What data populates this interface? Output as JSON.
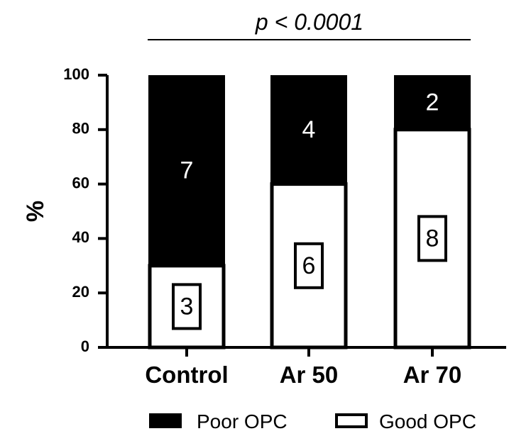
{
  "chart_data": {
    "type": "bar",
    "stacked": true,
    "categories": [
      "Control",
      "Ar 50",
      "Ar 70"
    ],
    "series": [
      {
        "name": "Good OPC",
        "values": [
          30,
          60,
          80
        ],
        "counts": [
          "3",
          "6",
          "8"
        ],
        "color": "#ffffff"
      },
      {
        "name": "Poor OPC",
        "values": [
          70,
          40,
          20
        ],
        "counts": [
          "7",
          "4",
          "2"
        ],
        "color": "#000000"
      }
    ],
    "ylabel": "%",
    "ylim": [
      0,
      100
    ],
    "yticks": [
      "0",
      "20",
      "40",
      "60",
      "80",
      "100"
    ],
    "annotation": "p < 0.0001",
    "legend_position": "bottom",
    "legend": [
      "Poor OPC",
      "Good OPC"
    ],
    "grid": false
  }
}
